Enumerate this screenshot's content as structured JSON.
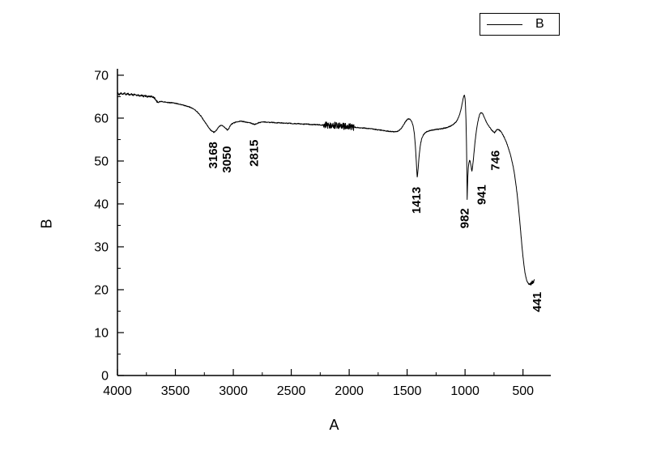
{
  "chart_data": {
    "type": "line",
    "title": "",
    "xlabel": "A",
    "ylabel": "B",
    "legend_label": "B",
    "legend_position": "top-right-outside",
    "grid": false,
    "axis_reversed_x": true,
    "xlim": [
      4000,
      260
    ],
    "ylim": [
      0,
      71.5
    ],
    "x_ticks": [
      4000,
      3500,
      3000,
      2500,
      2000,
      1500,
      1000,
      500
    ],
    "y_ticks": [
      0,
      10,
      20,
      30,
      40,
      50,
      60,
      70
    ],
    "x_minor_step": 250,
    "y_minor_step": 5,
    "line_color": "#000000",
    "background": "#ffffff",
    "annotations": [
      {
        "label": "3168",
        "x": 3168,
        "y": 54.5,
        "dx": 4
      },
      {
        "label": "3050",
        "x": 3050,
        "y": 53.5,
        "dx": 4
      },
      {
        "label": "2815",
        "x": 2815,
        "y": 55.0,
        "dx": 4
      },
      {
        "label": "1413",
        "x": 1413,
        "y": 44.0,
        "dx": 4
      },
      {
        "label": "982",
        "x": 982,
        "y": 39.0,
        "dx": 2
      },
      {
        "label": "941",
        "x": 941,
        "y": 44.5,
        "dx": 17
      },
      {
        "label": "746",
        "x": 746,
        "y": 52.5,
        "dx": 6
      },
      {
        "label": "441",
        "x": 441,
        "y": 19.5,
        "dx": 14
      }
    ],
    "noise": {
      "base_amp": 0.1,
      "regions": [
        {
          "from": 4000,
          "to": 3650,
          "amp": 0.2
        },
        {
          "from": 2220,
          "to": 1960,
          "amp": 0.8
        }
      ]
    },
    "series": [
      {
        "name": "B",
        "points": [
          [
            4000,
            65.8
          ],
          [
            3985,
            65.5
          ],
          [
            3970,
            65.9
          ],
          [
            3955,
            65.6
          ],
          [
            3940,
            65.8
          ],
          [
            3925,
            65.5
          ],
          [
            3910,
            65.7
          ],
          [
            3895,
            65.4
          ],
          [
            3880,
            65.7
          ],
          [
            3865,
            65.3
          ],
          [
            3850,
            65.6
          ],
          [
            3835,
            65.3
          ],
          [
            3820,
            65.4
          ],
          [
            3805,
            65.2
          ],
          [
            3790,
            65.3
          ],
          [
            3775,
            65.1
          ],
          [
            3760,
            65.2
          ],
          [
            3745,
            65.0
          ],
          [
            3730,
            65.1
          ],
          [
            3715,
            65.0
          ],
          [
            3700,
            65.0
          ],
          [
            3685,
            64.8
          ],
          [
            3672,
            64.4
          ],
          [
            3660,
            63.9
          ],
          [
            3650,
            63.6
          ],
          [
            3640,
            63.8
          ],
          [
            3625,
            63.9
          ],
          [
            3610,
            63.8
          ],
          [
            3580,
            63.7
          ],
          [
            3550,
            63.6
          ],
          [
            3520,
            63.6
          ],
          [
            3490,
            63.4
          ],
          [
            3460,
            63.2
          ],
          [
            3430,
            63.0
          ],
          [
            3400,
            62.8
          ],
          [
            3370,
            62.5
          ],
          [
            3340,
            62.1
          ],
          [
            3310,
            61.4
          ],
          [
            3280,
            60.5
          ],
          [
            3250,
            59.3
          ],
          [
            3220,
            58.1
          ],
          [
            3195,
            57.2
          ],
          [
            3180,
            56.9
          ],
          [
            3168,
            56.7
          ],
          [
            3155,
            56.9
          ],
          [
            3140,
            57.4
          ],
          [
            3125,
            58.0
          ],
          [
            3110,
            58.3
          ],
          [
            3095,
            58.3
          ],
          [
            3080,
            58.0
          ],
          [
            3065,
            57.6
          ],
          [
            3050,
            57.2
          ],
          [
            3038,
            57.6
          ],
          [
            3025,
            58.3
          ],
          [
            3010,
            58.7
          ],
          [
            2995,
            58.9
          ],
          [
            2975,
            59.1
          ],
          [
            2955,
            59.2
          ],
          [
            2935,
            59.3
          ],
          [
            2915,
            59.2
          ],
          [
            2895,
            59.1
          ],
          [
            2875,
            59.0
          ],
          [
            2855,
            58.9
          ],
          [
            2835,
            58.7
          ],
          [
            2815,
            58.5
          ],
          [
            2800,
            58.7
          ],
          [
            2785,
            58.9
          ],
          [
            2765,
            59.0
          ],
          [
            2745,
            59.1
          ],
          [
            2720,
            59.1
          ],
          [
            2695,
            59.0
          ],
          [
            2665,
            59.0
          ],
          [
            2635,
            58.9
          ],
          [
            2600,
            58.9
          ],
          [
            2560,
            58.8
          ],
          [
            2520,
            58.8
          ],
          [
            2480,
            58.7
          ],
          [
            2440,
            58.7
          ],
          [
            2400,
            58.6
          ],
          [
            2360,
            58.6
          ],
          [
            2320,
            58.5
          ],
          [
            2280,
            58.5
          ],
          [
            2240,
            58.4
          ],
          [
            2200,
            58.4
          ],
          [
            2160,
            58.3
          ],
          [
            2120,
            58.3
          ],
          [
            2080,
            58.2
          ],
          [
            2040,
            58.1
          ],
          [
            2000,
            58.0
          ],
          [
            1960,
            57.9
          ],
          [
            1920,
            57.8
          ],
          [
            1880,
            57.7
          ],
          [
            1840,
            57.6
          ],
          [
            1800,
            57.5
          ],
          [
            1760,
            57.3
          ],
          [
            1720,
            57.2
          ],
          [
            1680,
            57.0
          ],
          [
            1640,
            56.9
          ],
          [
            1610,
            56.8
          ],
          [
            1585,
            56.9
          ],
          [
            1565,
            57.2
          ],
          [
            1545,
            57.8
          ],
          [
            1525,
            58.7
          ],
          [
            1508,
            59.4
          ],
          [
            1494,
            59.8
          ],
          [
            1480,
            59.8
          ],
          [
            1468,
            59.5
          ],
          [
            1456,
            58.9
          ],
          [
            1446,
            57.9
          ],
          [
            1437,
            56.2
          ],
          [
            1429,
            53.6
          ],
          [
            1421,
            50.0
          ],
          [
            1415,
            47.0
          ],
          [
            1413,
            46.2
          ],
          [
            1410,
            46.8
          ],
          [
            1405,
            48.2
          ],
          [
            1398,
            50.6
          ],
          [
            1390,
            52.8
          ],
          [
            1382,
            54.3
          ],
          [
            1373,
            55.3
          ],
          [
            1362,
            56.0
          ],
          [
            1350,
            56.4
          ],
          [
            1335,
            56.8
          ],
          [
            1318,
            57.0
          ],
          [
            1300,
            57.1
          ],
          [
            1282,
            57.2
          ],
          [
            1264,
            57.3
          ],
          [
            1246,
            57.4
          ],
          [
            1228,
            57.4
          ],
          [
            1210,
            57.5
          ],
          [
            1192,
            57.6
          ],
          [
            1174,
            57.7
          ],
          [
            1156,
            57.8
          ],
          [
            1138,
            58.0
          ],
          [
            1120,
            58.2
          ],
          [
            1102,
            58.5
          ],
          [
            1086,
            58.9
          ],
          [
            1070,
            59.4
          ],
          [
            1056,
            60.2
          ],
          [
            1044,
            61.1
          ],
          [
            1034,
            62.2
          ],
          [
            1025,
            63.4
          ],
          [
            1017,
            64.5
          ],
          [
            1010,
            65.2
          ],
          [
            1005,
            65.4
          ],
          [
            1000,
            64.6
          ],
          [
            996,
            62.8
          ],
          [
            992,
            59.5
          ],
          [
            988,
            54.5
          ],
          [
            985,
            49.0
          ],
          [
            983,
            44.0
          ],
          [
            982,
            41.0
          ],
          [
            981,
            41.8
          ],
          [
            979,
            44.0
          ],
          [
            976,
            46.5
          ],
          [
            972,
            48.3
          ],
          [
            967,
            49.6
          ],
          [
            962,
            50.1
          ],
          [
            957,
            50.0
          ],
          [
            952,
            49.4
          ],
          [
            947,
            48.6
          ],
          [
            944,
            48.0
          ],
          [
            941,
            47.6
          ],
          [
            938,
            48.0
          ],
          [
            934,
            48.9
          ],
          [
            929,
            50.2
          ],
          [
            922,
            52.2
          ],
          [
            914,
            54.4
          ],
          [
            906,
            56.3
          ],
          [
            898,
            57.9
          ],
          [
            890,
            59.1
          ],
          [
            882,
            60.1
          ],
          [
            874,
            60.8
          ],
          [
            866,
            61.2
          ],
          [
            858,
            61.3
          ],
          [
            850,
            61.1
          ],
          [
            842,
            60.7
          ],
          [
            834,
            60.2
          ],
          [
            826,
            59.7
          ],
          [
            818,
            59.2
          ],
          [
            810,
            58.8
          ],
          [
            802,
            58.4
          ],
          [
            794,
            58.1
          ],
          [
            786,
            57.8
          ],
          [
            778,
            57.5
          ],
          [
            770,
            57.2
          ],
          [
            762,
            57.0
          ],
          [
            754,
            56.8
          ],
          [
            746,
            56.6
          ],
          [
            739,
            56.8
          ],
          [
            732,
            57.1
          ],
          [
            724,
            57.3
          ],
          [
            716,
            57.4
          ],
          [
            708,
            57.3
          ],
          [
            700,
            57.1
          ],
          [
            692,
            56.9
          ],
          [
            684,
            56.6
          ],
          [
            676,
            56.2
          ],
          [
            668,
            55.8
          ],
          [
            660,
            55.4
          ],
          [
            652,
            54.9
          ],
          [
            644,
            54.4
          ],
          [
            636,
            53.8
          ],
          [
            628,
            53.2
          ],
          [
            620,
            52.5
          ],
          [
            612,
            51.8
          ],
          [
            604,
            51.0
          ],
          [
            596,
            50.1
          ],
          [
            588,
            49.1
          ],
          [
            580,
            48.0
          ],
          [
            572,
            46.7
          ],
          [
            564,
            45.2
          ],
          [
            556,
            43.5
          ],
          [
            548,
            41.6
          ],
          [
            540,
            39.5
          ],
          [
            532,
            37.2
          ],
          [
            524,
            34.8
          ],
          [
            516,
            32.3
          ],
          [
            508,
            29.9
          ],
          [
            500,
            27.7
          ],
          [
            492,
            25.8
          ],
          [
            484,
            24.2
          ],
          [
            476,
            23.0
          ],
          [
            468,
            22.2
          ],
          [
            460,
            21.7
          ],
          [
            452,
            21.4
          ],
          [
            446,
            21.3
          ],
          [
            441,
            21.2
          ],
          [
            437,
            21.5
          ],
          [
            433,
            21.0
          ],
          [
            429,
            21.8
          ],
          [
            425,
            21.2
          ],
          [
            421,
            22.0
          ],
          [
            417,
            21.4
          ],
          [
            413,
            22.1
          ],
          [
            409,
            21.6
          ],
          [
            405,
            22.2
          ],
          [
            400,
            22.4
          ]
        ]
      }
    ]
  }
}
